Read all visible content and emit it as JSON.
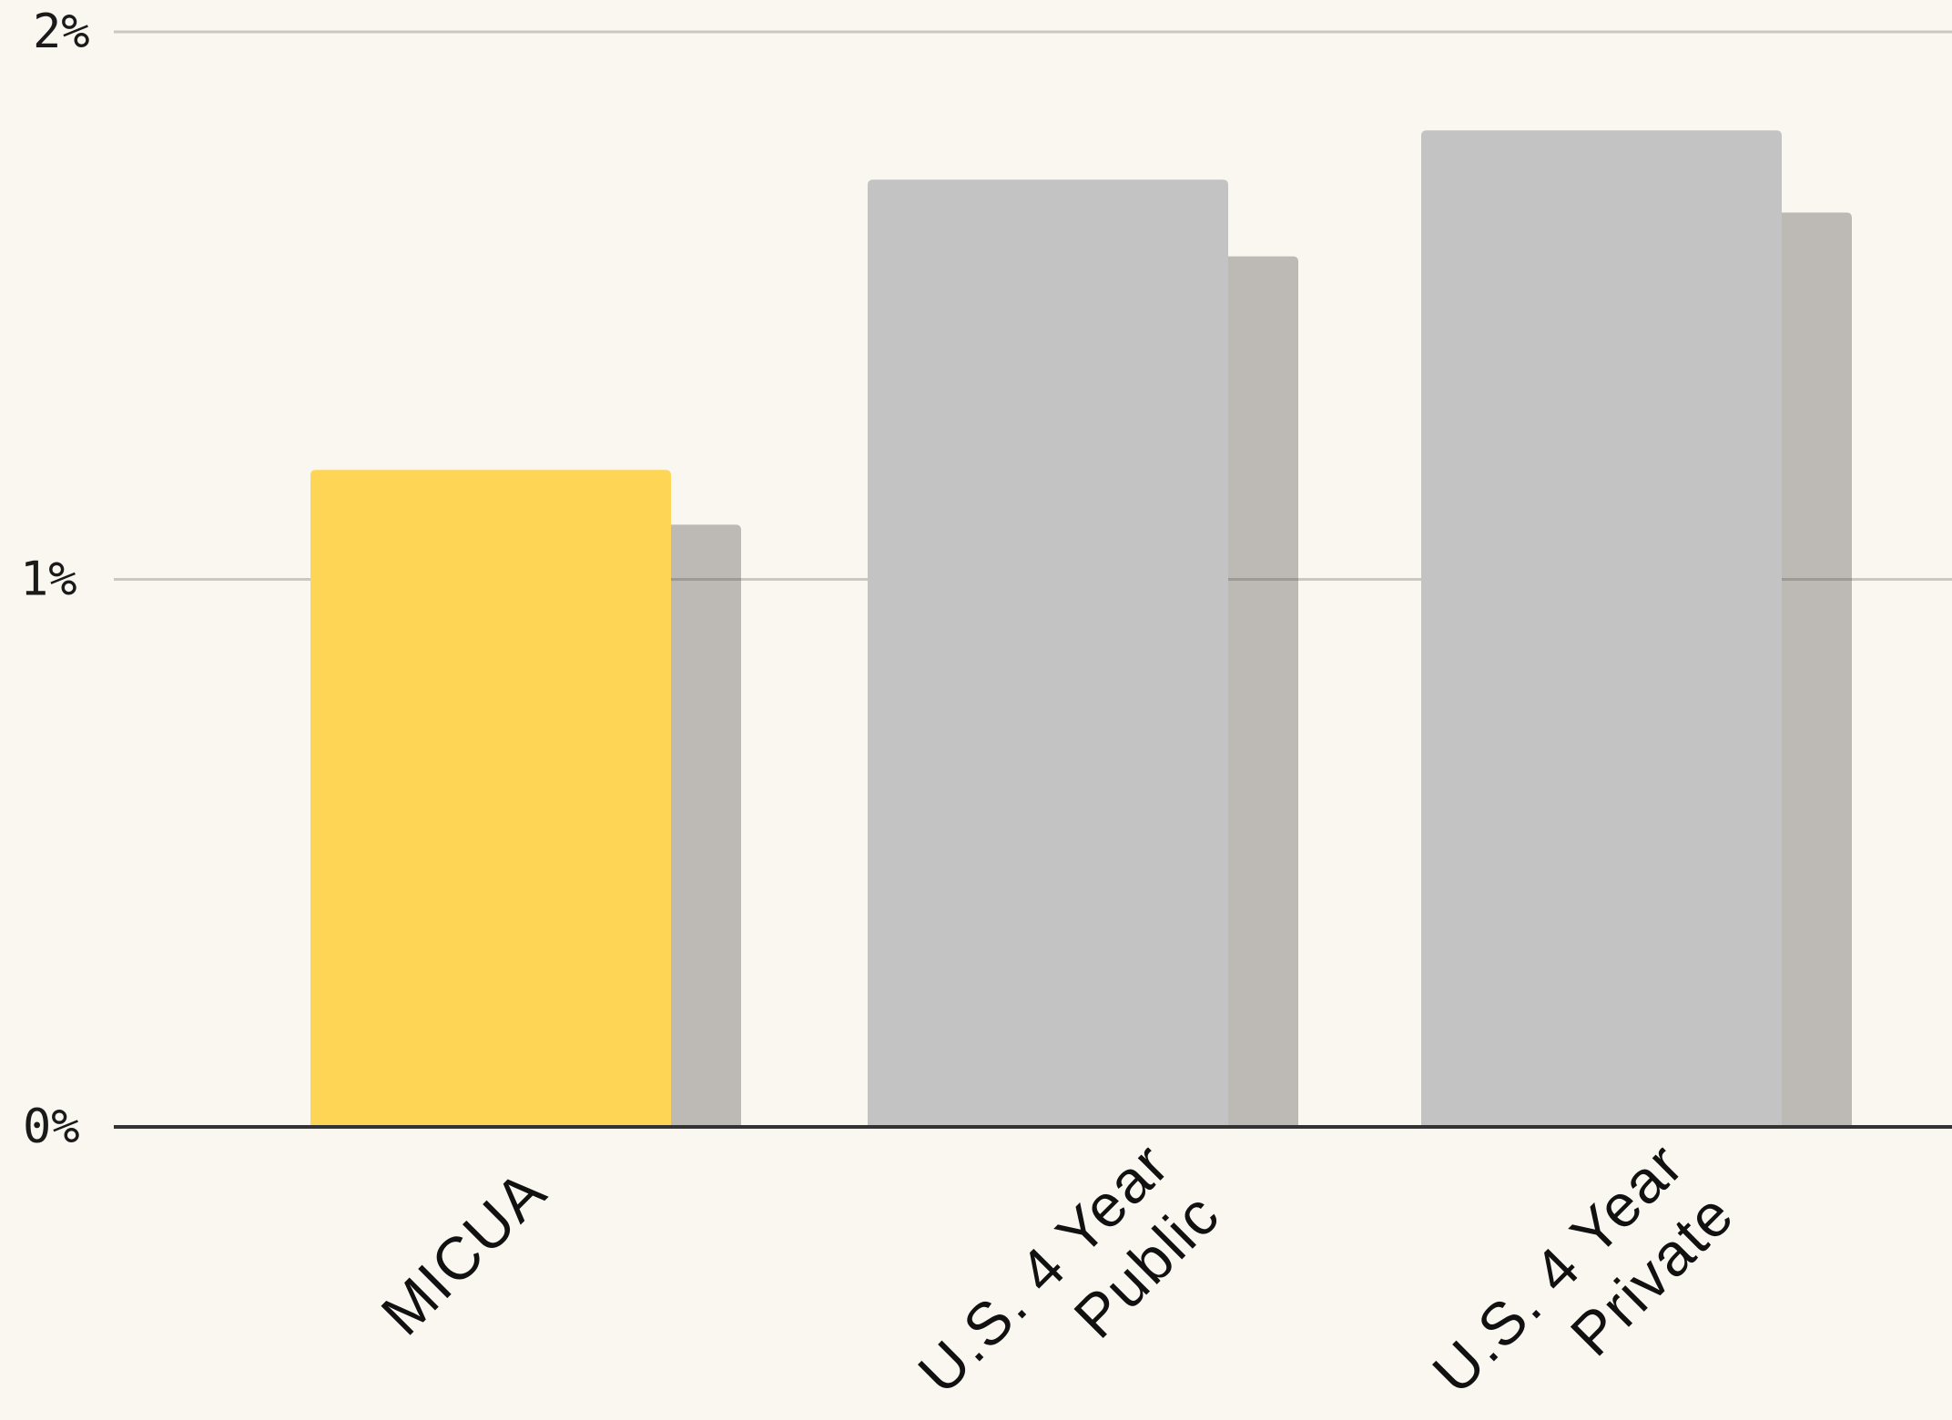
{
  "chart_data": {
    "type": "bar",
    "categories": [
      [
        "MICUA"
      ],
      [
        "U.S. 4 Year",
        "Public"
      ],
      [
        "U.S. 4 Year",
        "Private"
      ]
    ],
    "series": [
      {
        "values": [
          1.2,
          1.73,
          1.82
        ],
        "color": "#ffd556"
      },
      {
        "values": [
          1.1,
          1.59,
          1.67
        ],
        "color": "#bdbab5"
      }
    ],
    "highlight_color": "#ffd556",
    "bar_color": "#c3c3c3",
    "shadow_color": "#bdbab5",
    "ylim": [
      0,
      2
    ],
    "yticks": [
      {
        "value": 0,
        "label": "0%"
      },
      {
        "value": 1,
        "label": "1%"
      },
      {
        "value": 2,
        "label": "2%"
      }
    ],
    "grid": true,
    "legend": "none",
    "title": "",
    "xlabel": "",
    "ylabel": ""
  }
}
